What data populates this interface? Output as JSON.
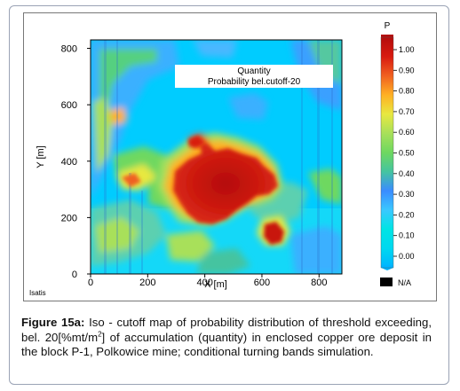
{
  "figure": {
    "software_label": "Isatis",
    "inset_title_line1": "Quantity",
    "inset_title_line2": "Probability bel.cutoff-20",
    "na_label": "N/A",
    "caption_lead": "Figure 15a:",
    "caption_text_1": " Iso - cutoff map of probability distribution of threshold exceeding, bel. 20[%mt/m",
    "caption_sup_1": "2",
    "caption_text_2": "] of accumulation (quantity) in enclosed copper ore deposit in the block P-1, Polkowice mine; conditional turning bands simulation."
  },
  "chart_data": {
    "type": "heatmap",
    "xlabel": "X [m]",
    "ylabel": "Y [m]",
    "xlim": [
      0,
      880
    ],
    "ylim": [
      0,
      830
    ],
    "xticks": [
      0,
      200,
      400,
      600,
      800
    ],
    "yticks": [
      0,
      200,
      400,
      600,
      800
    ],
    "colorbar": {
      "label": "P",
      "ticks": [
        "0.00",
        "0.10",
        "0.20",
        "0.30",
        "0.40",
        "0.50",
        "0.60",
        "0.70",
        "0.80",
        "0.90",
        "1.00"
      ],
      "range": [
        0,
        1
      ],
      "colors": [
        "#00b4ff",
        "#00d8f0",
        "#00e4e4",
        "#3ac8ff",
        "#3a8cff",
        "#44c4a0",
        "#6ed860",
        "#a8e05a",
        "#e8e840",
        "#ffb024",
        "#f06020",
        "#d81a10",
        "#b40c0c"
      ]
    },
    "na_color": "#000000",
    "features": [
      {
        "name": "main-high-zone",
        "value": 1.0,
        "center": [
          470,
          300
        ]
      },
      {
        "name": "south-east-blob",
        "value": 1.0,
        "center": [
          690,
          130
        ]
      },
      {
        "name": "west-yellow-zone",
        "value": 0.65,
        "center": [
          180,
          430
        ]
      },
      {
        "name": "north-west-strip",
        "value": 0.6,
        "center": [
          100,
          680
        ]
      }
    ]
  }
}
